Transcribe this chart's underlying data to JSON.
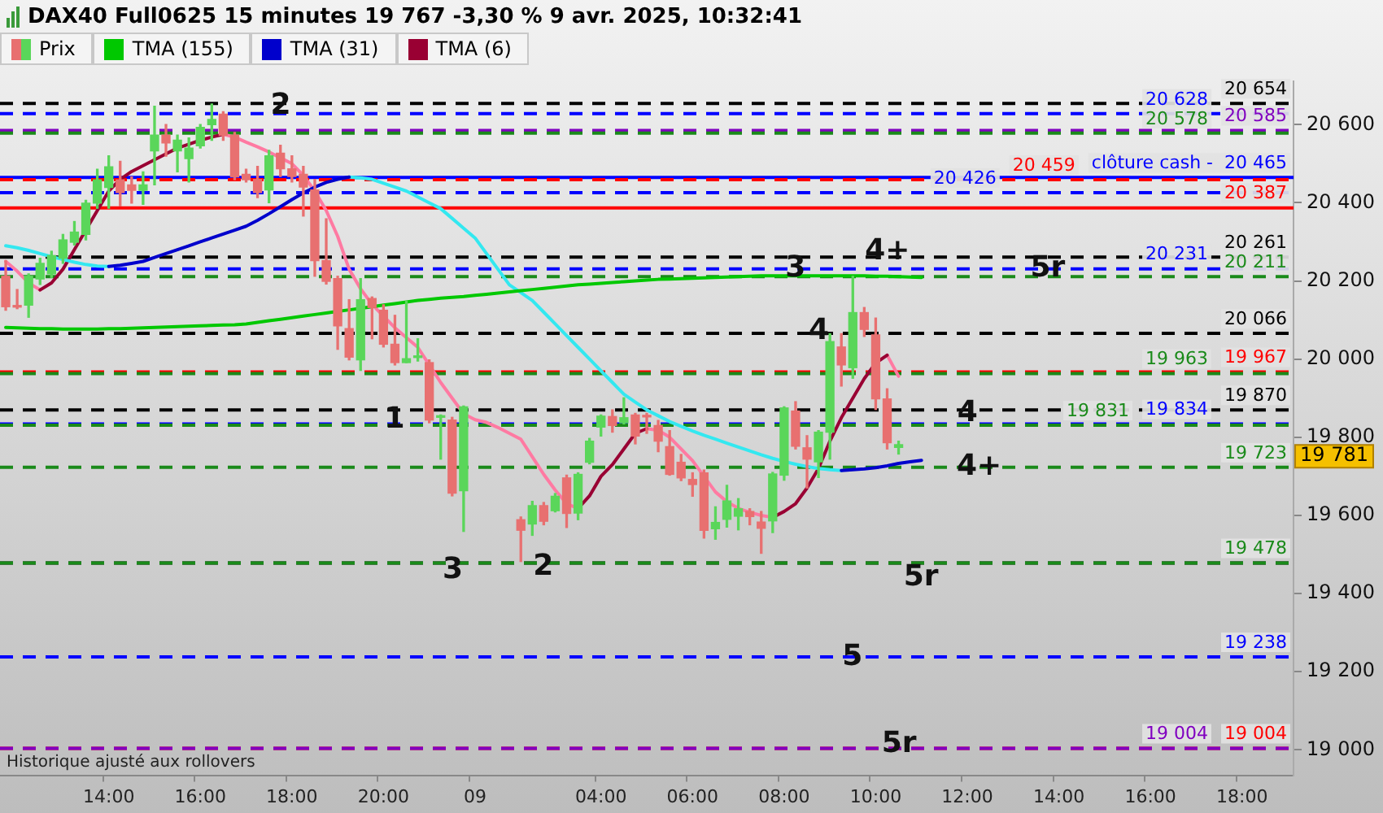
{
  "chart_data": {
    "type": "candlestick",
    "title": "DAX40 Full0625 15 minutes 19 767 -3,30 % 9 avr. 2025, 10:32:41",
    "categories": [
      null,
      null,
      null,
      null,
      null,
      null,
      null,
      null,
      null,
      "14:00",
      null,
      null,
      null,
      null,
      null,
      null,
      null,
      "16:00",
      null,
      null,
      null,
      null,
      null,
      null,
      null,
      "18:00",
      null,
      null,
      null,
      null,
      null,
      null,
      null,
      "20:00",
      null,
      null,
      null,
      null,
      null,
      null,
      null,
      "09",
      null,
      null,
      null,
      null,
      null,
      null,
      null,
      null,
      null,
      null,
      "04:00",
      null,
      null,
      null,
      null,
      null,
      null,
      null,
      "06:00",
      null,
      null,
      null,
      null,
      null,
      null,
      null,
      "08:00",
      null,
      null,
      null,
      null,
      null,
      null,
      null,
      "10:00",
      null,
      null,
      null,
      null,
      null,
      null,
      null,
      "12:00",
      null,
      null,
      null,
      null,
      null,
      null,
      null,
      "14:00",
      null,
      null,
      null,
      null,
      null,
      null,
      null,
      "16:00",
      null,
      null,
      null,
      null,
      null,
      null,
      null,
      "18:00",
      null,
      null,
      null,
      null
    ],
    "ylim": [
      18935,
      20710
    ],
    "yticks": [
      {
        "value": 19000,
        "label": "19 000"
      },
      {
        "value": 19200,
        "label": "19 200"
      },
      {
        "value": 19400,
        "label": "19 400"
      },
      {
        "value": 19600,
        "label": "19 600"
      },
      {
        "value": 19800,
        "label": "19 800"
      },
      {
        "value": 20000,
        "label": "20 000"
      },
      {
        "value": 20200,
        "label": "20 200"
      },
      {
        "value": 20400,
        "label": "20 400"
      },
      {
        "value": 20600,
        "label": "20 600"
      }
    ],
    "legend": "top left",
    "series": [
      {
        "name": "Prix",
        "ohlc": [
          [
            20212,
            20252,
            20125,
            20134
          ],
          [
            20136,
            20178,
            20129,
            20133
          ],
          [
            20138,
            20218,
            20107,
            20212
          ],
          [
            20205,
            20258,
            20191,
            20245
          ],
          [
            20218,
            20276,
            20209,
            20265
          ],
          [
            20258,
            20319,
            20245,
            20305
          ],
          [
            20299,
            20352,
            20292,
            20325
          ],
          [
            20319,
            20406,
            20305,
            20399
          ],
          [
            20399,
            20486,
            20386,
            20459
          ],
          [
            20439,
            20520,
            20386,
            20492
          ],
          [
            20459,
            20506,
            20392,
            20426
          ],
          [
            20446,
            20466,
            20399,
            20432
          ],
          [
            20432,
            20479,
            20396,
            20446
          ],
          [
            20533,
            20647,
            20446,
            20573
          ],
          [
            20573,
            20600,
            20519,
            20553
          ],
          [
            20533,
            20573,
            20479,
            20560
          ],
          [
            20513,
            20566,
            20453,
            20540
          ],
          [
            20546,
            20600,
            20540,
            20593
          ],
          [
            20600,
            20653,
            20560,
            20613
          ],
          [
            20627,
            20633,
            20560,
            20573
          ],
          [
            20573,
            20580,
            20459,
            20466
          ],
          [
            20473,
            20486,
            20453,
            20459
          ],
          [
            20460,
            20493,
            20413,
            20426
          ],
          [
            20433,
            20534,
            20400,
            20520
          ],
          [
            20527,
            20547,
            20467,
            20487
          ],
          [
            20487,
            20520,
            20453,
            20467
          ],
          [
            20473,
            20493,
            20366,
            20440
          ],
          [
            20433,
            20460,
            20212,
            20252
          ],
          [
            20252,
            20359,
            20192,
            20199
          ],
          [
            20206,
            20212,
            20025,
            20085
          ],
          [
            20078,
            20152,
            19998,
            20005
          ],
          [
            19998,
            20206,
            19971,
            20152
          ],
          [
            20155,
            20159,
            20052,
            20132
          ],
          [
            20125,
            20139,
            20031,
            20038
          ],
          [
            20038,
            20112,
            19985,
            19991
          ],
          [
            19991,
            20148,
            19991,
            20001
          ],
          [
            20004,
            20052,
            19995,
            20005
          ],
          [
            19991,
            19998,
            19837,
            19844
          ],
          [
            19851,
            19857,
            19744,
            19851
          ],
          [
            19844,
            19851,
            19650,
            19657
          ],
          [
            19663,
            19880,
            19559,
            19878
          ],
          null,
          null,
          null,
          null,
          [
            19589,
            19596,
            19482,
            19562
          ],
          [
            19578,
            19636,
            19549,
            19625
          ],
          [
            19625,
            19633,
            19576,
            19585
          ],
          [
            19612,
            19656,
            19609,
            19649
          ],
          [
            19696,
            19703,
            19569,
            19605
          ],
          [
            19606,
            19709,
            19589,
            19705
          ],
          [
            19736,
            19797,
            19732,
            19790
          ],
          [
            19826,
            19857,
            19803,
            19854
          ],
          [
            19853,
            19870,
            19813,
            19830
          ],
          [
            19837,
            19901,
            19834,
            19850
          ],
          [
            19857,
            19861,
            19783,
            19803
          ],
          [
            19853,
            19861,
            19810,
            19852
          ],
          [
            19830,
            19843,
            19763,
            19790
          ],
          [
            19776,
            19817,
            19703,
            19705
          ],
          [
            19736,
            19756,
            19689,
            19696
          ],
          [
            19692,
            19709,
            19649,
            19679
          ],
          [
            19709,
            19716,
            19542,
            19562
          ],
          [
            19566,
            19622,
            19539,
            19582
          ],
          [
            19590,
            19677,
            19570,
            19637
          ],
          [
            19598,
            19643,
            19563,
            19617
          ],
          [
            19610,
            19617,
            19576,
            19597
          ],
          [
            19583,
            19610,
            19503,
            19567
          ],
          [
            19586,
            19710,
            19556,
            19706
          ],
          [
            19703,
            19878,
            19690,
            19875
          ],
          [
            19867,
            19891,
            19770,
            19777
          ],
          [
            19773,
            19804,
            19670,
            19744
          ],
          [
            19737,
            19817,
            19697,
            19813
          ],
          [
            19813,
            20065,
            19744,
            20045
          ],
          [
            20031,
            20065,
            19931,
            19985
          ],
          [
            19978,
            20212,
            19951,
            20119
          ],
          [
            20119,
            20132,
            20058,
            20076
          ],
          [
            20062,
            20105,
            19871,
            19898
          ],
          [
            19898,
            19924,
            19770,
            19786
          ],
          [
            19774,
            19790,
            19757,
            19781
          ],
          null,
          null,
          null,
          null,
          null,
          null,
          null,
          null,
          null,
          null,
          null,
          null,
          null,
          null,
          null,
          null,
          null,
          null,
          null,
          null,
          null,
          null,
          null,
          null,
          null,
          null,
          null,
          null,
          null,
          null,
          null,
          null,
          null,
          null
        ],
        "colors": [
          "#e87070",
          "#e87070",
          "#5ad65a",
          "#5ad65a",
          "#5ad65a",
          "#5ad65a",
          "#5ad65a",
          "#5ad65a",
          "#5ad65a",
          "#5ad65a",
          "#e87070",
          "#e87070",
          "#5ad65a",
          "#5ad65a",
          "#e87070",
          "#5ad65a",
          "#5ad65a",
          "#5ad65a",
          "#5ad65a",
          "#e87070",
          "#e87070",
          "#e87070",
          "#e87070",
          "#5ad65a",
          "#e87070",
          "#e87070",
          "#e87070",
          "#e87070",
          "#e87070",
          "#e87070",
          "#e87070",
          "#5ad65a",
          "#e87070",
          "#e87070",
          "#e87070",
          "#5ad65a",
          "#5ad65a",
          "#e87070",
          "#5ad65a",
          "#e87070",
          "#5ad65a",
          null,
          null,
          null,
          null,
          "#e87070",
          "#5ad65a",
          "#e87070",
          "#5ad65a",
          "#e87070",
          "#5ad65a",
          "#5ad65a",
          "#5ad65a",
          "#e87070",
          "#5ad65a",
          "#e87070",
          "#e87070",
          "#e87070",
          "#e87070",
          "#e87070",
          "#e87070",
          "#e87070",
          "#5ad65a",
          "#5ad65a",
          "#5ad65a",
          "#e87070",
          "#e87070",
          "#5ad65a",
          "#5ad65a",
          "#e87070",
          "#e87070",
          "#5ad65a",
          "#5ad65a",
          "#e87070",
          "#5ad65a",
          "#e87070",
          "#e87070",
          "#e87070",
          "#5ad65a",
          null,
          null,
          null,
          null,
          null,
          null,
          null,
          null,
          null,
          null,
          null,
          null,
          null,
          null,
          null,
          null,
          null,
          null,
          null,
          null,
          null,
          null,
          null,
          null,
          null,
          null,
          null,
          null,
          null,
          null,
          null,
          null,
          null,
          null
        ]
      },
      {
        "name": "TMA (155)",
        "type": "line",
        "color": "#00c800",
        "values": [
          20081,
          20080,
          20079,
          20078,
          20078,
          20077,
          20077,
          20077,
          20077,
          20078,
          20078,
          20079,
          20080,
          20081,
          20082,
          20083,
          20084,
          20085,
          20086,
          20087,
          20088,
          20090,
          20094,
          20098,
          20102,
          20106,
          20110,
          20114,
          20118,
          20122,
          20126,
          20130,
          20134,
          20138,
          20142,
          20146,
          20150,
          20153,
          20156,
          20158,
          20160,
          20163,
          20166,
          20169,
          20172,
          20175,
          20178,
          20181,
          20184,
          20187,
          20190,
          20192,
          20194,
          20196,
          20198,
          20200,
          20202,
          20204,
          20205,
          20206,
          20207,
          20208,
          20209,
          20210,
          20211,
          20212,
          20213,
          20213,
          20213,
          20213,
          20213,
          20213,
          20213,
          20213,
          20213,
          20213,
          20212,
          20212,
          20211,
          20210,
          20209,
          null,
          null,
          null,
          null,
          null,
          null,
          null,
          null,
          null,
          null,
          null,
          null,
          null,
          null,
          null,
          null,
          null,
          null,
          null,
          null,
          null,
          null,
          null,
          null,
          null,
          null,
          null,
          null,
          null,
          null,
          null,
          null
        ]
      },
      {
        "name": "TMA (31)",
        "type": "line",
        "color": "#0000cc",
        "values": [
          null,
          null,
          null,
          null,
          null,
          null,
          null,
          null,
          null,
          20237,
          20240,
          20245,
          20250,
          20260,
          20270,
          20280,
          20290,
          20300,
          20310,
          20320,
          20330,
          20340,
          20355,
          20372,
          20390,
          20408,
          20425,
          20440,
          20452,
          20460,
          20466,
          null,
          null,
          null,
          null,
          null,
          null,
          null,
          null,
          null,
          null,
          null,
          null,
          null,
          null,
          null,
          null,
          null,
          null,
          null,
          null,
          null,
          null,
          null,
          null,
          null,
          null,
          null,
          null,
          null,
          null,
          null,
          null,
          null,
          null,
          null,
          null,
          null,
          null,
          null,
          null,
          null,
          null,
          19715,
          19717,
          19719,
          19722,
          19727,
          19733,
          19737,
          19741,
          null,
          null,
          null,
          null,
          null,
          null,
          null,
          null,
          null,
          null,
          null,
          null,
          null,
          null,
          null,
          null,
          null,
          null,
          null,
          null,
          null,
          null,
          null,
          null,
          null,
          null,
          null,
          null,
          null,
          null,
          null,
          null
        ]
      },
      {
        "type": "line",
        "color": "#33e8f0",
        "values": [
          20290,
          20285,
          20278,
          20270,
          20262,
          20255,
          20248,
          20242,
          20238,
          20237,
          null,
          null,
          null,
          null,
          null,
          null,
          null,
          null,
          null,
          null,
          null,
          null,
          null,
          null,
          null,
          null,
          null,
          null,
          null,
          null,
          20466,
          20464,
          20460,
          20450,
          20440,
          20430,
          20415,
          20400,
          20385,
          20360,
          20335,
          20310,
          20270,
          20230,
          20190,
          20170,
          20150,
          20120,
          20090,
          20060,
          20030,
          20000,
          19970,
          19940,
          19910,
          19890,
          19870,
          19855,
          19840,
          19828,
          19816,
          19805,
          19795,
          19785,
          19775,
          19765,
          19755,
          19746,
          19738,
          19731,
          19725,
          19720,
          19717,
          19715,
          null,
          null,
          null,
          null,
          null,
          null,
          null,
          null,
          null,
          null,
          null,
          null,
          null,
          null,
          null,
          null,
          null,
          null,
          null,
          null,
          null,
          null,
          null,
          null,
          null,
          null,
          null,
          null,
          null,
          null,
          null,
          null,
          null,
          null,
          null,
          null,
          null,
          null,
          null
        ]
      },
      {
        "name": "TMA (6)",
        "type": "line",
        "color": "#990033",
        "values": [
          null,
          null,
          null,
          20177,
          20195,
          20230,
          20280,
          20330,
          20380,
          20430,
          20460,
          20480,
          20495,
          20510,
          20525,
          20540,
          20550,
          20560,
          20568,
          20575,
          null,
          null,
          null,
          null,
          null,
          null,
          null,
          null,
          null,
          null,
          null,
          null,
          null,
          null,
          null,
          null,
          null,
          null,
          null,
          null,
          null,
          null,
          null,
          null,
          null,
          null,
          null,
          null,
          null,
          null,
          19618,
          19650,
          19700,
          19730,
          19770,
          19810,
          19822,
          null,
          null,
          null,
          null,
          null,
          null,
          null,
          null,
          null,
          null,
          19595,
          19610,
          19630,
          19670,
          19720,
          19790,
          19850,
          19900,
          19950,
          19990,
          20010,
          null,
          null,
          null,
          null,
          null,
          null,
          null,
          null,
          null,
          null,
          null,
          null,
          null,
          null,
          null,
          null,
          null,
          null,
          null,
          null,
          null,
          null,
          null,
          null,
          null,
          null,
          null,
          null,
          null,
          null,
          null,
          null,
          null,
          null,
          null
        ]
      },
      {
        "type": "line",
        "color": "#ff7aa2",
        "values": [
          20250,
          20225,
          20195,
          20177,
          null,
          null,
          null,
          null,
          null,
          null,
          null,
          null,
          null,
          null,
          null,
          null,
          null,
          null,
          null,
          20575,
          20568,
          20555,
          20543,
          20530,
          20515,
          20500,
          20470,
          20430,
          20380,
          20314,
          20230,
          20180,
          20140,
          20110,
          20080,
          20055,
          20030,
          19985,
          19940,
          19900,
          19860,
          19845,
          19838,
          19825,
          19810,
          19795,
          19750,
          19705,
          19665,
          19630,
          19618,
          null,
          null,
          null,
          null,
          null,
          19822,
          19818,
          19800,
          19770,
          19740,
          19700,
          19660,
          19635,
          19618,
          19608,
          19600,
          19595,
          null,
          null,
          null,
          null,
          null,
          null,
          null,
          null,
          null,
          20010,
          19956,
          null,
          null,
          null,
          null,
          null,
          null,
          null,
          null,
          null,
          null,
          null,
          null,
          null,
          null,
          null,
          null,
          null,
          null,
          null,
          null,
          null,
          null,
          null,
          null,
          null,
          null,
          null,
          null,
          null,
          null,
          null,
          null,
          null,
          null
        ]
      }
    ],
    "ref_lines": [
      {
        "axis": "y",
        "value": 20654,
        "label": "20 654",
        "color": "#000000",
        "line_style": "dashed"
      },
      {
        "axis": "y",
        "value": 20628,
        "label": "20 628",
        "color": "#0000ff",
        "line_style": "dashed"
      },
      {
        "axis": "y",
        "value": 20585,
        "label": "20 585",
        "color": "#8000c0",
        "line_style": "dashed"
      },
      {
        "axis": "y",
        "value": 20578,
        "label": "20 578",
        "color": "#1a8a1a",
        "line_style": "dashed"
      },
      {
        "axis": "y",
        "value": 20465,
        "label": "clôture cash -  20 465",
        "color": "#0000ff",
        "line_style": "solid"
      },
      {
        "axis": "y",
        "value": 20459,
        "label": "20 459",
        "color": "#ff0000",
        "line_style": "dashed"
      },
      {
        "axis": "y",
        "value": 20426,
        "label": "20 426",
        "color": "#0000ff",
        "line_style": "dashed"
      },
      {
        "axis": "y",
        "value": 20387,
        "label": "20 387",
        "color": "#ff0000",
        "line_style": "solid"
      },
      {
        "axis": "y",
        "value": 20261,
        "label": "20 261",
        "color": "#000000",
        "line_style": "dashed"
      },
      {
        "axis": "y",
        "value": 20231,
        "label": "20 231",
        "color": "#0000ff",
        "line_style": "dashed"
      },
      {
        "axis": "y",
        "value": 20211,
        "label": "20 211",
        "color": "#1a8a1a",
        "line_style": "dashed"
      },
      {
        "axis": "y",
        "value": 20066,
        "label": "20 066",
        "color": "#000000",
        "line_style": "dashed"
      },
      {
        "axis": "y",
        "value": 19967,
        "label": "19 967",
        "color": "#ff0000",
        "line_style": "dashed"
      },
      {
        "axis": "y",
        "value": 19963,
        "label": "19 963",
        "color": "#1a8a1a",
        "line_style": "dashed"
      },
      {
        "axis": "y",
        "value": 19870,
        "label": "19 870",
        "color": "#000000",
        "line_style": "dashed"
      },
      {
        "axis": "y",
        "value": 19834,
        "label": "19 834",
        "color": "#0000ff",
        "line_style": "dashed"
      },
      {
        "axis": "y",
        "value": 19831,
        "label": "19 831",
        "color": "#1a8a1a",
        "line_style": "dashed"
      },
      {
        "axis": "y",
        "value": 19723,
        "label": "19 723",
        "color": "#1a8a1a",
        "line_style": "dashed"
      },
      {
        "axis": "y",
        "value": 19478,
        "color": "#000000",
        "line_style": "dashed"
      },
      {
        "axis": "y",
        "value": 19478,
        "label": "19 478",
        "color": "#1a8a1a",
        "line_style": "dashed"
      },
      {
        "axis": "y",
        "value": 19238,
        "label": "19 238",
        "color": "#0000ff",
        "line_style": "dashed"
      },
      {
        "axis": "y",
        "value": 19004,
        "label": "19 004",
        "color": "#ff0000",
        "line_style": "dashed"
      },
      {
        "axis": "y",
        "value": 19004,
        "label": "19 004",
        "color": "#8000c0",
        "line_style": "dashed"
      }
    ],
    "annotations": [
      "2",
      "4+",
      "3",
      "5r",
      "4",
      "1",
      "4",
      "4+",
      "3",
      "2",
      "5r",
      "5",
      "5r",
      "19 781",
      "Historique ajusté aux rollovers"
    ]
  }
}
